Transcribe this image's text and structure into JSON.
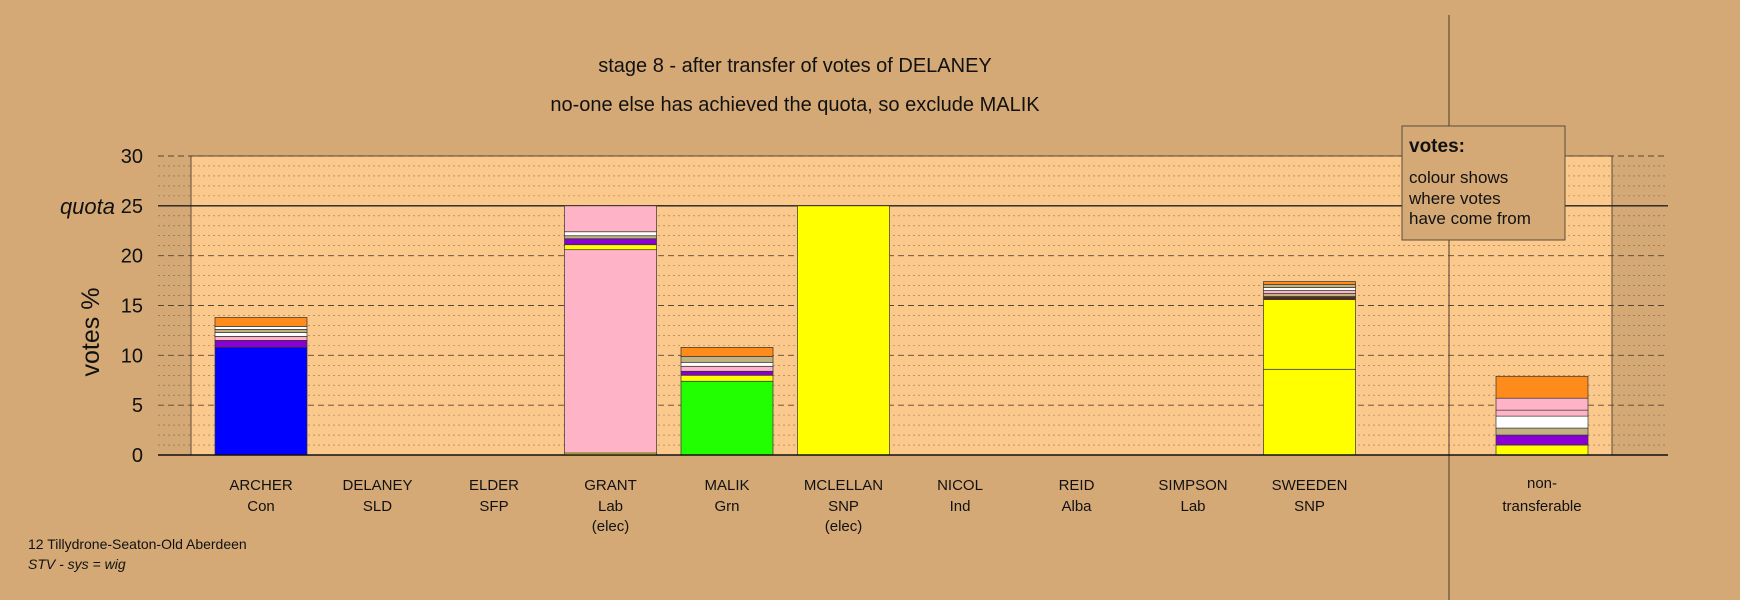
{
  "chart_data": {
    "type": "bar",
    "title": "stage 8 - after transfer of votes of DELANEY",
    "subtitle": "no-one else has achieved the quota, so exclude MALIK",
    "ylabel": "votes %",
    "ylim": [
      0,
      30
    ],
    "yticks": [
      0,
      5,
      10,
      15,
      20,
      25,
      30
    ],
    "quota": 25,
    "quota_label": "quota",
    "grid": true,
    "stacked": true,
    "candidates": [
      {
        "name": "ARCHER",
        "party": "Con",
        "note": "",
        "segments": [
          {
            "color": "#0000ff",
            "value": 10.8
          },
          {
            "color": "#8a00d4",
            "value": 0.7
          },
          {
            "color": "#ffb3c6",
            "value": 0.4
          },
          {
            "color": "#ffffff",
            "value": 0.4
          },
          {
            "color": "#c2b280",
            "value": 0.3
          },
          {
            "color": "#ffffff",
            "value": 0.3
          },
          {
            "color": "#ff8c1a",
            "value": 0.9
          }
        ]
      },
      {
        "name": "DELANEY",
        "party": "SLD",
        "note": "",
        "segments": []
      },
      {
        "name": "ELDER",
        "party": "SFP",
        "note": "",
        "segments": []
      },
      {
        "name": "GRANT",
        "party": "Lab",
        "note": "(elec)",
        "segments": [
          {
            "color": "#ffff00",
            "value": 0.2
          },
          {
            "color": "#ffb3c6",
            "value": 20.4
          },
          {
            "color": "#ffff00",
            "value": 0.5
          },
          {
            "color": "#8a00d4",
            "value": 0.6
          },
          {
            "color": "#c2b280",
            "value": 0.3
          },
          {
            "color": "#ffffff",
            "value": 0.4
          },
          {
            "color": "#ffb3c6",
            "value": 2.6
          }
        ]
      },
      {
        "name": "MALIK",
        "party": "Grn",
        "note": "",
        "segments": [
          {
            "color": "#22ff00",
            "value": 7.4
          },
          {
            "color": "#ffff00",
            "value": 0.6
          },
          {
            "color": "#8a00d4",
            "value": 0.4
          },
          {
            "color": "#ffb3c6",
            "value": 0.5
          },
          {
            "color": "#ffffff",
            "value": 0.4
          },
          {
            "color": "#c2b280",
            "value": 0.6
          },
          {
            "color": "#ff8c1a",
            "value": 0.9
          }
        ]
      },
      {
        "name": "MCLELLAN",
        "party": "SNP",
        "note": "(elec)",
        "segments": [
          {
            "color": "#ffff00",
            "value": 25.0
          }
        ]
      },
      {
        "name": "NICOL",
        "party": "Ind",
        "note": "",
        "segments": []
      },
      {
        "name": "REID",
        "party": "Alba",
        "note": "",
        "segments": []
      },
      {
        "name": "SIMPSON",
        "party": "Lab",
        "note": "",
        "segments": []
      },
      {
        "name": "SWEEDEN",
        "party": "SNP",
        "note": "",
        "segments": [
          {
            "color": "#ffff00",
            "value": 8.6
          },
          {
            "color": "#ffff00",
            "value": 7.0
          },
          {
            "color": "#5a2d14",
            "value": 0.3
          },
          {
            "color": "#c2b280",
            "value": 0.3
          },
          {
            "color": "#ffb3c6",
            "value": 0.3
          },
          {
            "color": "#ffffff",
            "value": 0.3
          },
          {
            "color": "#c2b280",
            "value": 0.3
          },
          {
            "color": "#ff8c1a",
            "value": 0.3
          }
        ]
      }
    ],
    "non_transferable": {
      "label_line1": "non-",
      "label_line2": "transferable",
      "segments": [
        {
          "color": "#ffff00",
          "value": 1.0
        },
        {
          "color": "#8a00d4",
          "value": 1.0
        },
        {
          "color": "#c2b280",
          "value": 0.7
        },
        {
          "color": "#ffffff",
          "value": 1.2
        },
        {
          "color": "#ffb3c6",
          "value": 0.6
        },
        {
          "color": "#ffb3c6",
          "value": 1.2
        },
        {
          "color": "#ff8c1a",
          "value": 2.2
        }
      ]
    },
    "legend": {
      "title": "votes:",
      "lines": [
        "colour shows",
        "where votes",
        "have come from"
      ],
      "placement": "top-right"
    }
  },
  "footer": {
    "ward": "12 Tillydrone-Seaton-Old Aberdeen",
    "system": "STV - sys = wig"
  },
  "colors": {
    "background": "#d4a976",
    "plot_area": "#fcc98d",
    "text": "#111111"
  }
}
